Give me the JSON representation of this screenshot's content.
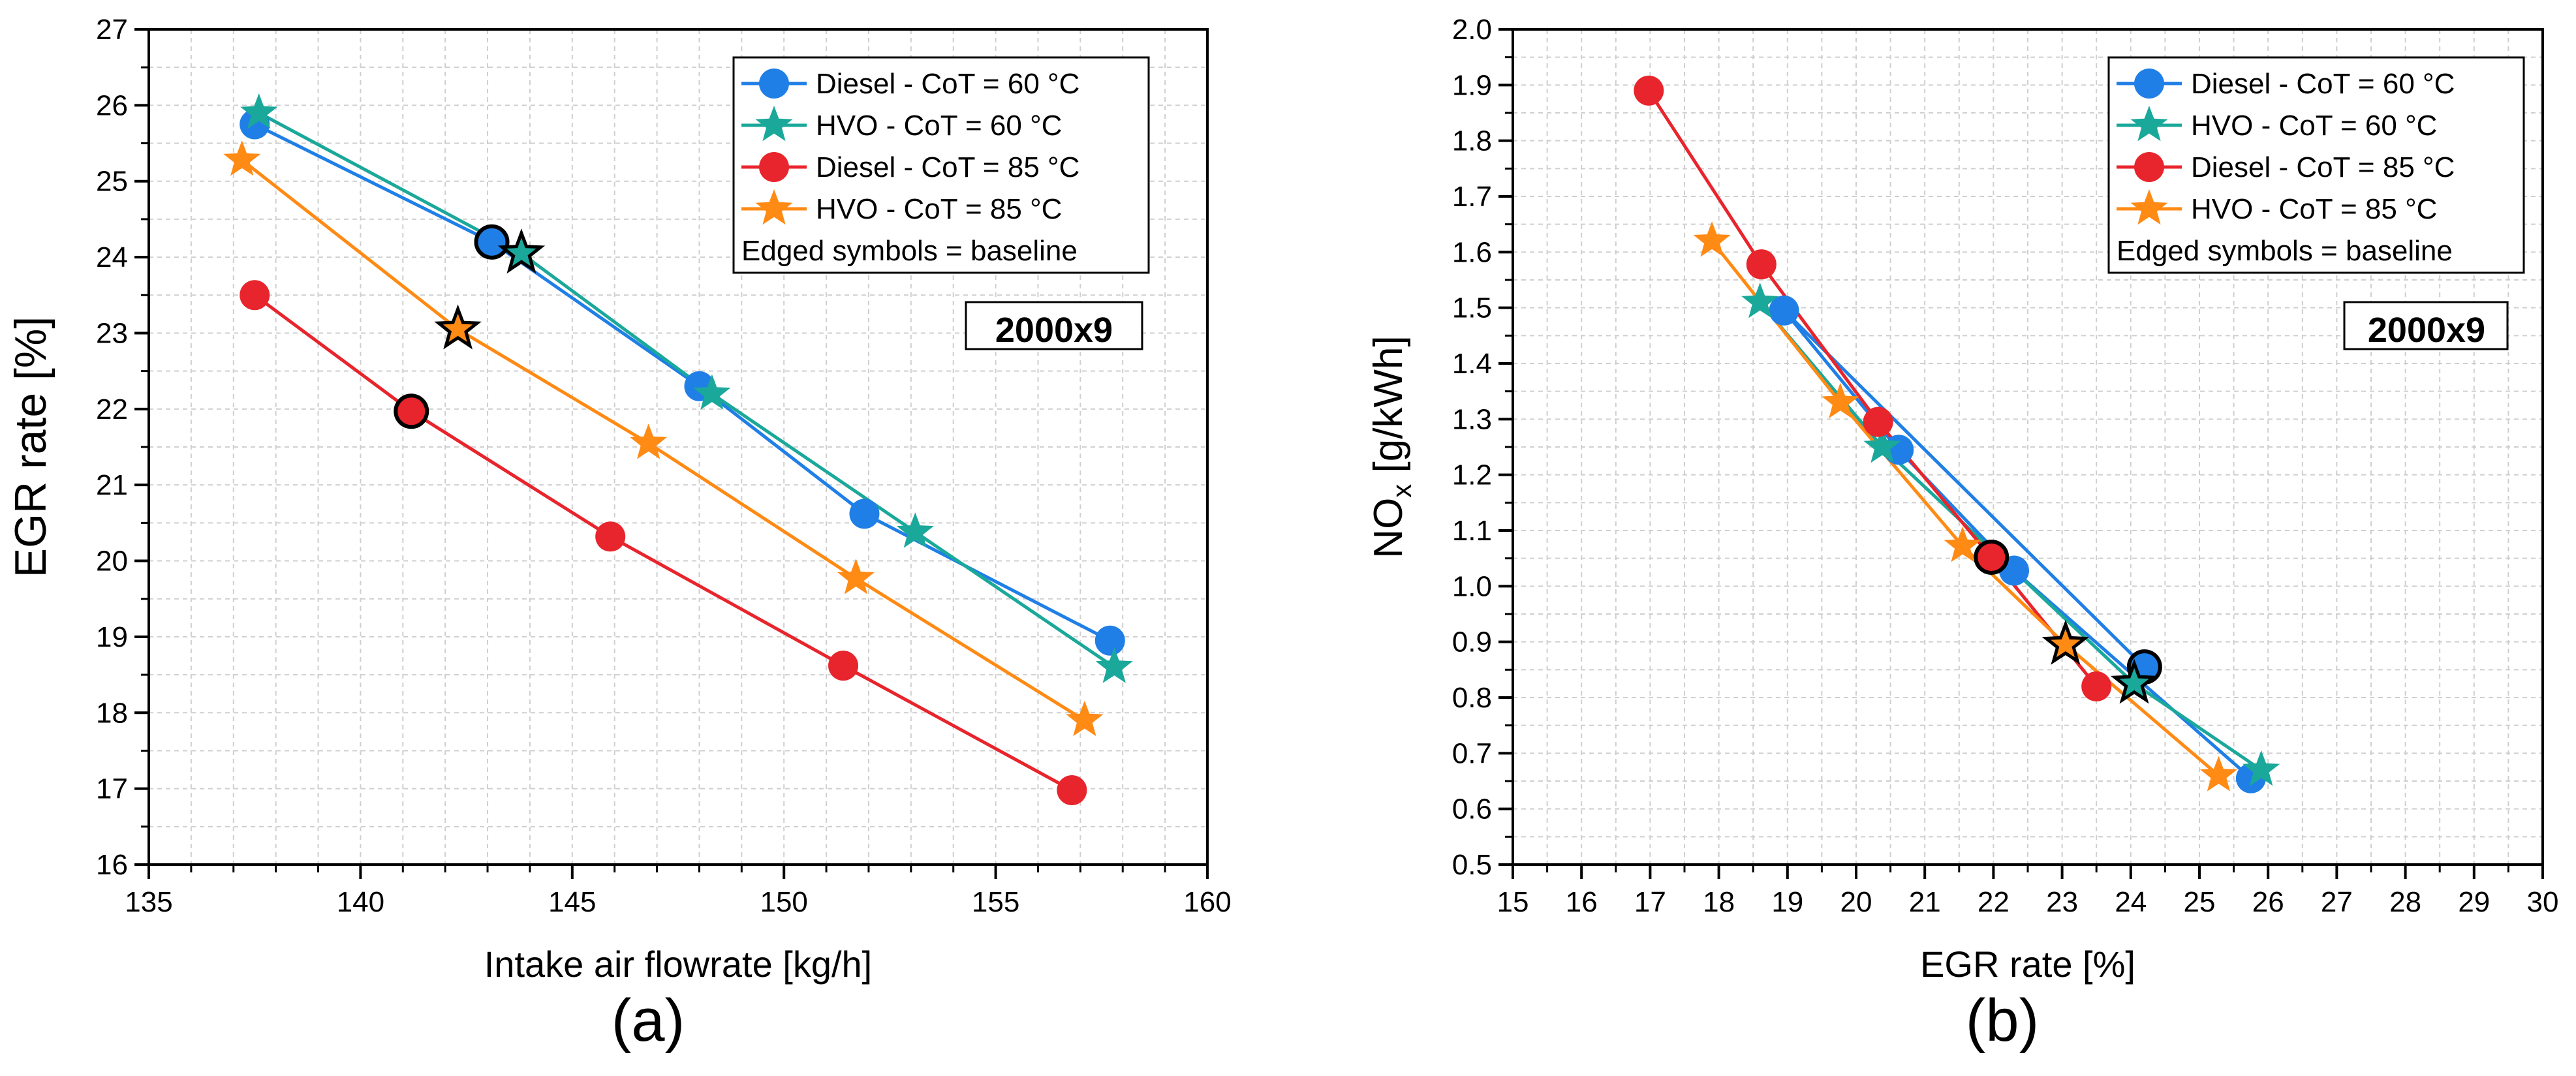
{
  "chart_data": [
    {
      "type": "line",
      "panel_label": "(a)",
      "xlabel": "Intake air flowrate [kg/h]",
      "ylabel": "EGR rate  [%]",
      "xlim": [
        135,
        160
      ],
      "ylim": [
        16,
        27
      ],
      "xticks": [
        "135",
        "140",
        "145",
        "150",
        "155",
        "160"
      ],
      "yticks": [
        "16",
        "17",
        "18",
        "19",
        "20",
        "21",
        "22",
        "23",
        "24",
        "25",
        "26",
        "27"
      ],
      "x_minor_step": 1,
      "y_minor_step": 0.5,
      "grid": true,
      "legend_position": "top-right",
      "legend_note": "Edged symbols = baseline",
      "annotation": "2000x9",
      "series": [
        {
          "name": "Diesel - CoT = 60 °C",
          "color": "#1f7fe6",
          "marker": "circle",
          "points": [
            [
              137.5,
              25.75
            ],
            [
              143.1,
              24.2
            ],
            [
              148.0,
              22.3
            ],
            [
              151.9,
              20.62
            ],
            [
              157.7,
              18.95
            ]
          ],
          "baseline_index": 1
        },
        {
          "name": "HVO - CoT = 60 °C",
          "color": "#1aa89a",
          "marker": "star",
          "points": [
            [
              137.6,
              25.9
            ],
            [
              143.8,
              24.05
            ],
            [
              148.3,
              22.2
            ],
            [
              153.1,
              20.38
            ],
            [
              157.8,
              18.6
            ]
          ],
          "baseline_index": 1
        },
        {
          "name": "Diesel - CoT = 85 °C",
          "color": "#e8242c",
          "marker": "circle",
          "points": [
            [
              137.5,
              23.5
            ],
            [
              141.2,
              21.97
            ],
            [
              145.9,
              20.32
            ],
            [
              151.4,
              18.62
            ],
            [
              156.8,
              16.98
            ]
          ],
          "baseline_index": 1
        },
        {
          "name": "HVO - CoT = 85 °C",
          "color": "#ff8a14",
          "marker": "star",
          "points": [
            [
              137.2,
              25.28
            ],
            [
              142.3,
              23.05
            ],
            [
              146.8,
              21.55
            ],
            [
              151.7,
              19.77
            ],
            [
              157.1,
              17.9
            ]
          ],
          "baseline_index": 1
        }
      ]
    },
    {
      "type": "line",
      "panel_label": "(b)",
      "xlabel": "EGR rate [%]",
      "ylabel_main": "NO",
      "ylabel_sub": "x",
      "ylabel_tail": " [g/kWh]",
      "xlim": [
        15,
        30
      ],
      "ylim": [
        0.5,
        2.0
      ],
      "xticks": [
        "15",
        "16",
        "17",
        "18",
        "19",
        "20",
        "21",
        "22",
        "23",
        "24",
        "25",
        "26",
        "27",
        "28",
        "29",
        "30"
      ],
      "yticks": [
        "0.5",
        "0.6",
        "0.7",
        "0.8",
        "0.9",
        "1.0",
        "1.1",
        "1.2",
        "1.3",
        "1.4",
        "1.5",
        "1.6",
        "1.7",
        "1.8",
        "1.9",
        "2.0"
      ],
      "x_minor_step": 0.5,
      "y_minor_step": 0.05,
      "grid": true,
      "legend_position": "top-right",
      "legend_note": "Edged symbols = baseline",
      "annotation": "2000x9",
      "series": [
        {
          "name": "Diesel - CoT = 60 °C",
          "color": "#1f7fe6",
          "marker": "circle",
          "points": [
            [
              25.75,
              0.655
            ],
            [
              22.3,
              1.028
            ],
            [
              20.62,
              1.245
            ],
            [
              18.95,
              1.495
            ],
            [
              24.2,
              0.855
            ]
          ],
          "baseline_index": 4
        },
        {
          "name": "HVO - CoT = 60 °C",
          "color": "#1aa89a",
          "marker": "star",
          "points": [
            [
              25.9,
              0.67
            ],
            [
              24.05,
              0.825
            ],
            [
              20.38,
              1.25
            ],
            [
              18.6,
              1.51
            ]
          ],
          "baseline_index": 1
        },
        {
          "name": "Diesel - CoT = 85 °C",
          "color": "#e8242c",
          "marker": "circle",
          "points": [
            [
              16.98,
              1.89
            ],
            [
              18.62,
              1.578
            ],
            [
              20.32,
              1.295
            ],
            [
              21.97,
              1.052
            ],
            [
              23.5,
              0.82
            ]
          ],
          "baseline_index": 3
        },
        {
          "name": "HVO - CoT = 85 °C",
          "color": "#ff8a14",
          "marker": "star",
          "points": [
            [
              17.9,
              1.62
            ],
            [
              19.77,
              1.33
            ],
            [
              21.55,
              1.072
            ],
            [
              23.05,
              0.895
            ],
            [
              25.28,
              0.66
            ]
          ],
          "baseline_index": 3
        }
      ]
    }
  ]
}
